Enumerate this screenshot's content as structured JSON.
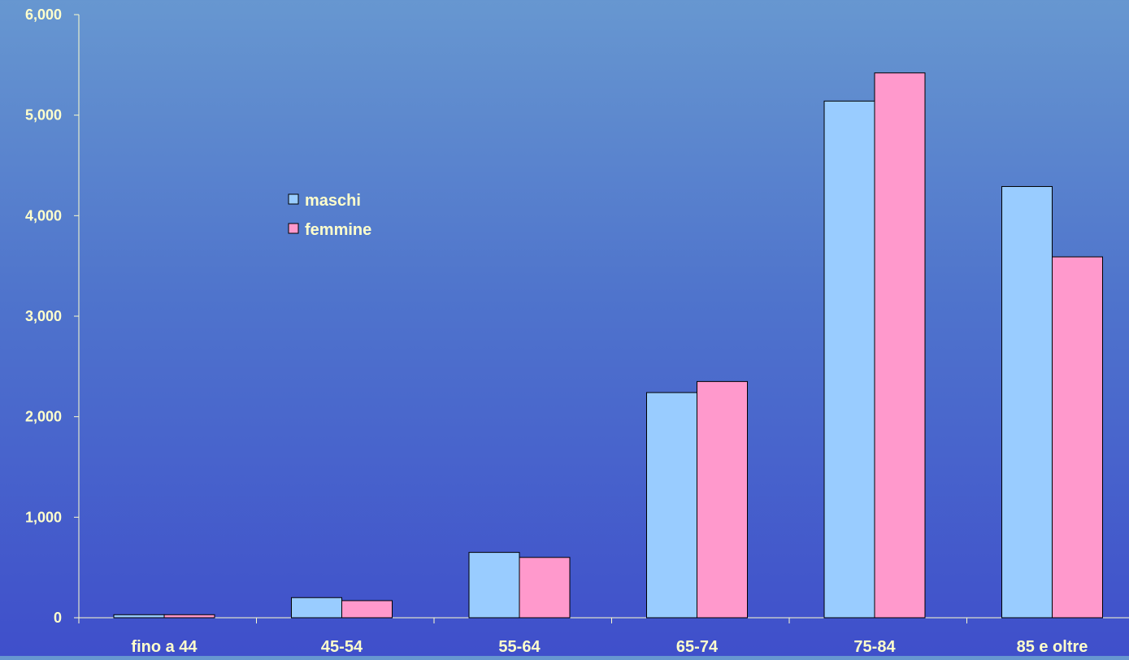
{
  "chart_data": {
    "type": "bar",
    "categories": [
      "fino a 44",
      "45-54",
      "55-64",
      "65-74",
      "75-84",
      "85 e oltre"
    ],
    "series": [
      {
        "name": "maschi",
        "values": [
          30,
          200,
          650,
          2240,
          5140,
          4290
        ],
        "color": "#99CCFF"
      },
      {
        "name": "femmine",
        "values": [
          30,
          170,
          600,
          2350,
          5420,
          3590
        ],
        "color": "#FF99CC"
      }
    ],
    "yticks": [
      "0",
      "1,000",
      "2,000",
      "3,000",
      "4,000",
      "5,000",
      "6,000"
    ],
    "ylim": [
      0,
      6000
    ],
    "grid": false,
    "legend_position": "upper-center-left",
    "text_color": "#FFFFCC",
    "axis_color": "#FFFFCC",
    "bar_outline": "#000000"
  }
}
